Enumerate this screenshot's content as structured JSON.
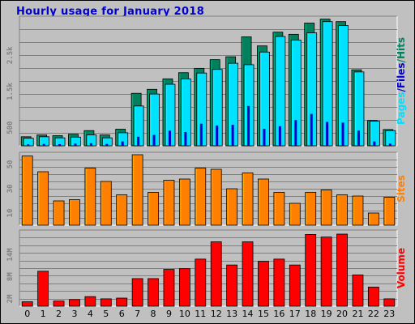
{
  "title": "Hourly usage for January 2018",
  "colors": {
    "hits": "#00805c",
    "files": "#00e0ff",
    "pages": "#0000cc",
    "sites": "#ff8000",
    "volume": "#ff0000",
    "title": "#0000cc",
    "background": "#c0c0c0",
    "plot_background": "#c0c0c0"
  },
  "chart_data": [
    {
      "type": "bar",
      "name": "hits-files-pages",
      "categories": [
        "0",
        "1",
        "2",
        "3",
        "4",
        "5",
        "6",
        "7",
        "8",
        "9",
        "10",
        "11",
        "12",
        "13",
        "14",
        "15",
        "16",
        "17",
        "18",
        "19",
        "20",
        "21",
        "22",
        "23"
      ],
      "series": [
        {
          "name": "Hits",
          "values": [
            250,
            300,
            280,
            320,
            420,
            300,
            460,
            1450,
            1560,
            1850,
            2020,
            2140,
            2380,
            2460,
            3010,
            2760,
            3140,
            3080,
            3390,
            3500,
            3430,
            2100,
            700,
            450
          ]
        },
        {
          "name": "Files",
          "values": [
            210,
            250,
            220,
            240,
            300,
            220,
            360,
            1100,
            1430,
            1700,
            1850,
            2010,
            2110,
            2280,
            2240,
            2590,
            3020,
            2920,
            3120,
            3430,
            3320,
            2040,
            680,
            420
          ]
        },
        {
          "name": "Pages",
          "values": [
            40,
            50,
            45,
            60,
            70,
            50,
            120,
            250,
            300,
            420,
            380,
            610,
            560,
            580,
            1100,
            470,
            540,
            710,
            880,
            660,
            640,
            420,
            120,
            60
          ]
        }
      ],
      "yticks": [
        "500",
        "1.5k",
        "2.5k"
      ],
      "ytick_values": [
        500,
        1500,
        2500
      ],
      "ylim": [
        0,
        3580
      ],
      "ylabel": [
        "Pages",
        "/",
        "Files",
        "/",
        "Hits"
      ]
    },
    {
      "type": "bar",
      "name": "sites",
      "categories": [
        "0",
        "1",
        "2",
        "3",
        "4",
        "5",
        "6",
        "7",
        "8",
        "9",
        "10",
        "11",
        "12",
        "13",
        "14",
        "15",
        "16",
        "17",
        "18",
        "19",
        "20",
        "21",
        "22",
        "23"
      ],
      "series": [
        {
          "name": "Sites",
          "values": [
            57,
            44,
            20,
            21,
            47,
            36,
            25,
            58,
            27,
            37,
            38,
            47,
            46,
            30,
            43,
            38,
            27,
            18,
            27,
            29,
            25,
            24,
            10,
            23
          ]
        }
      ],
      "yticks": [
        "10",
        "30",
        "50"
      ],
      "ytick_values": [
        10,
        30,
        50
      ],
      "ylim": [
        0,
        60
      ],
      "ylabel": [
        "Sites"
      ]
    },
    {
      "type": "bar",
      "name": "volume",
      "categories": [
        "0",
        "1",
        "2",
        "3",
        "4",
        "5",
        "6",
        "7",
        "8",
        "9",
        "10",
        "11",
        "12",
        "13",
        "14",
        "15",
        "16",
        "17",
        "18",
        "19",
        "20",
        "21",
        "22",
        "23"
      ],
      "series": [
        {
          "name": "Volume",
          "values": [
            1.2,
            9.5,
            1.4,
            1.8,
            2.6,
            2.0,
            2.2,
            7.5,
            7.5,
            10.0,
            10.2,
            12.8,
            17.5,
            11.2,
            17.5,
            12.2,
            12.8,
            11.2,
            19.5,
            18.8,
            19.6,
            8.5,
            5.2,
            2.0
          ]
        }
      ],
      "yticks": [
        "2M",
        "8M",
        "14M"
      ],
      "ytick_values": [
        2,
        8,
        14
      ],
      "ylim": [
        0,
        20.7
      ],
      "ylabel": [
        "Volume"
      ]
    }
  ]
}
